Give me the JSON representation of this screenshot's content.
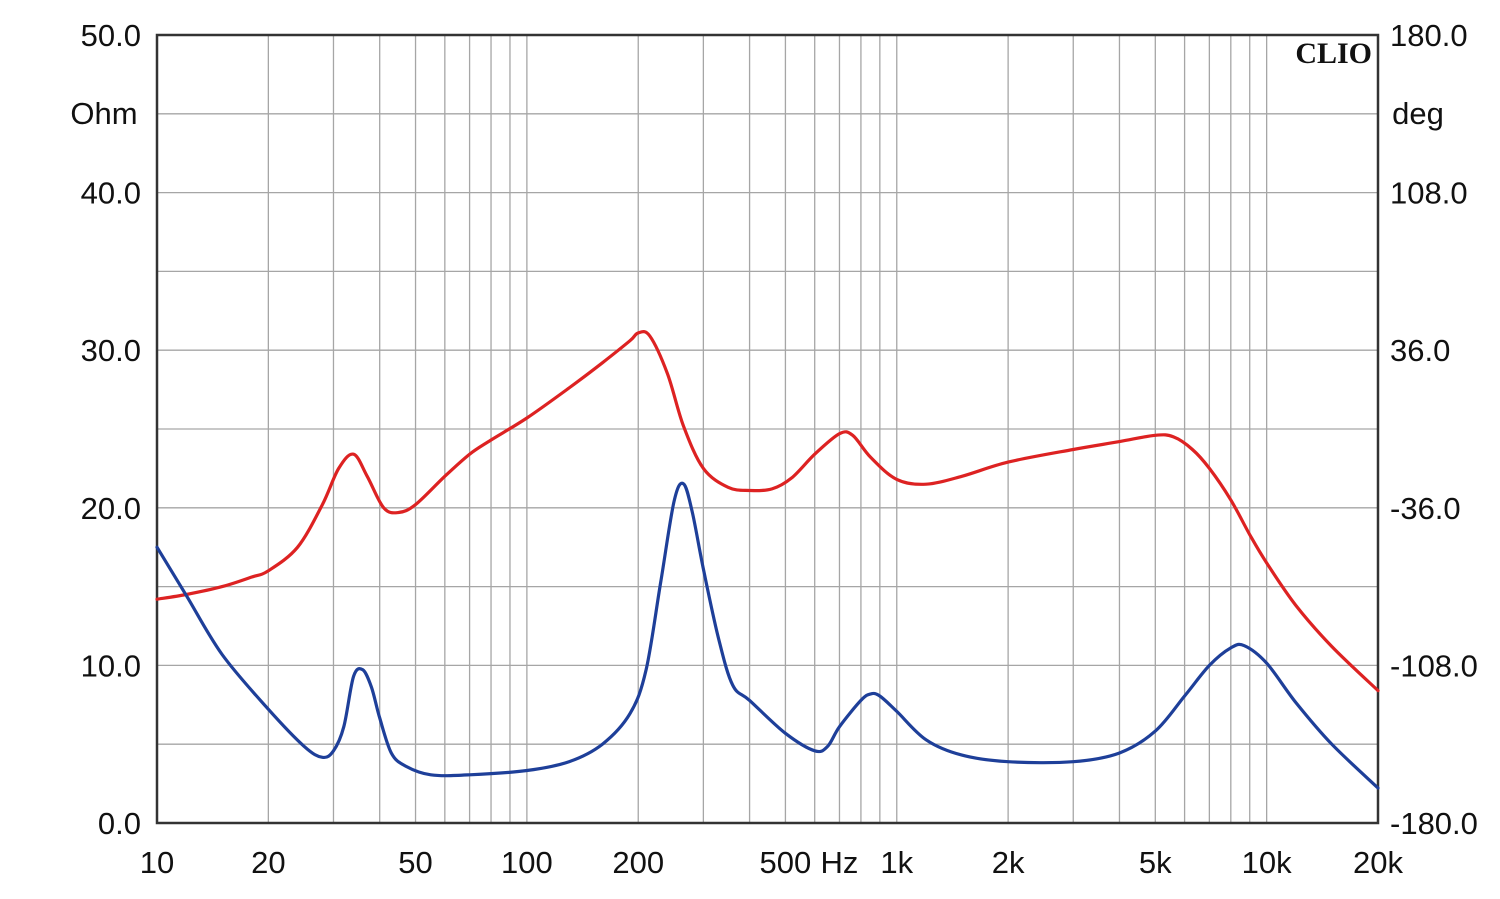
{
  "chart_data": {
    "type": "line",
    "brand": "CLIO",
    "x_scale": "log",
    "xlim": [
      10,
      20000
    ],
    "left_axis": {
      "unit": "Ohm",
      "ylim": [
        0,
        50
      ],
      "ticks": [
        "0.0",
        "10.0",
        "20.0",
        "30.0",
        "40.0",
        "50.0"
      ]
    },
    "right_axis": {
      "unit": "deg",
      "ylim": [
        -180,
        180
      ],
      "ticks": [
        "-180.0",
        "-108.0",
        "-36.0",
        "36.0",
        "108.0",
        "180.0"
      ]
    },
    "x_ticks": [
      {
        "label": "10",
        "value": 10
      },
      {
        "label": "20",
        "value": 20
      },
      {
        "label": "50",
        "value": 50
      },
      {
        "label": "100",
        "value": 100
      },
      {
        "label": "200",
        "value": 200
      },
      {
        "label": "500",
        "value": 500
      },
      {
        "label": "Hz",
        "value": 700
      },
      {
        "label": "1k",
        "value": 1000
      },
      {
        "label": "2k",
        "value": 2000
      },
      {
        "label": "5k",
        "value": 5000
      },
      {
        "label": "10k",
        "value": 10000
      },
      {
        "label": "20k",
        "value": 20000
      }
    ],
    "grid": true,
    "series": [
      {
        "axis": "left",
        "color": "#dd2222",
        "x": [
          10,
          12,
          15,
          18,
          20,
          24,
          28,
          31,
          34,
          37,
          41,
          45,
          50,
          60,
          70,
          80,
          100,
          130,
          160,
          190,
          200,
          215,
          240,
          265,
          300,
          350,
          400,
          460,
          520,
          600,
          700,
          760,
          850,
          1000,
          1200,
          1500,
          2000,
          3000,
          4000,
          5000,
          5600,
          6300,
          7000,
          8000,
          9000,
          10000,
          12000,
          15000,
          20000
        ],
        "values": [
          14.2,
          14.5,
          15.0,
          15.6,
          16.0,
          17.5,
          20.2,
          22.5,
          23.4,
          22.0,
          20.0,
          19.7,
          20.2,
          22.0,
          23.4,
          24.3,
          25.7,
          27.6,
          29.2,
          30.6,
          31.1,
          30.9,
          28.5,
          25.2,
          22.5,
          21.3,
          21.1,
          21.2,
          21.9,
          23.4,
          24.7,
          24.6,
          23.2,
          21.8,
          21.5,
          22.0,
          22.9,
          23.7,
          24.2,
          24.6,
          24.5,
          23.7,
          22.5,
          20.5,
          18.3,
          16.5,
          13.8,
          11.2,
          8.4
        ]
      },
      {
        "axis": "right",
        "color": "#1e3f99",
        "x": [
          10,
          12,
          15,
          20,
          25,
          28,
          30,
          32,
          34,
          36,
          38,
          40,
          43,
          47,
          55,
          70,
          100,
          130,
          160,
          190,
          210,
          230,
          250,
          265,
          280,
          300,
          330,
          360,
          400,
          500,
          600,
          650,
          700,
          800,
          850,
          900,
          1000,
          1200,
          1500,
          2000,
          3000,
          4000,
          5000,
          6000,
          7000,
          8000,
          8700,
          10000,
          12000,
          15000,
          20000
        ],
        "values": [
          -54,
          -76,
          -103,
          -128,
          -145,
          -150,
          -147,
          -136,
          -113,
          -110,
          -118,
          -132,
          -148,
          -154,
          -158,
          -158,
          -156,
          -152,
          -144,
          -130,
          -110,
          -70,
          -33,
          -25,
          -38,
          -64,
          -96,
          -117,
          -124,
          -139,
          -147,
          -145,
          -136,
          -124,
          -121,
          -122,
          -129,
          -142,
          -149,
          -152,
          -152,
          -148,
          -138,
          -122,
          -108,
          -100,
          -99,
          -107,
          -125,
          -144,
          -164
        ]
      }
    ]
  }
}
